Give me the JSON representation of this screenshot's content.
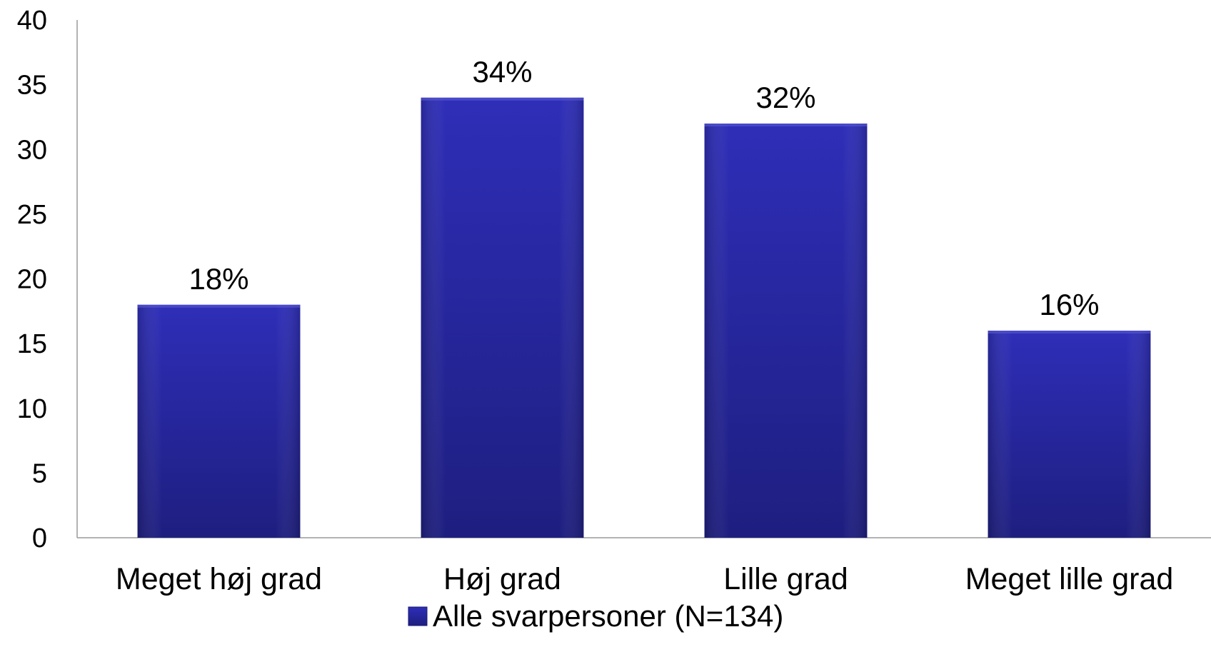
{
  "chart_data": {
    "type": "bar",
    "title": "",
    "xlabel": "",
    "ylabel": "",
    "categories": [
      "Meget høj grad",
      "Høj grad",
      "Lille grad",
      "Meget lille grad"
    ],
    "series": [
      {
        "name": "Alle svarpersoner (N=134)",
        "values": [
          18,
          34,
          32,
          16
        ],
        "labels": [
          "18%",
          "34%",
          "32%",
          "16%"
        ]
      }
    ],
    "ylim": [
      0,
      40
    ],
    "yticks": [
      0,
      5,
      10,
      15,
      20,
      25,
      30,
      35,
      40
    ],
    "grid": false,
    "legend": "bottom-center",
    "colors": {
      "bar_top": "#2E2EB8",
      "bar_bottom": "#1E1E80",
      "axis": "#9a9a9a"
    }
  }
}
